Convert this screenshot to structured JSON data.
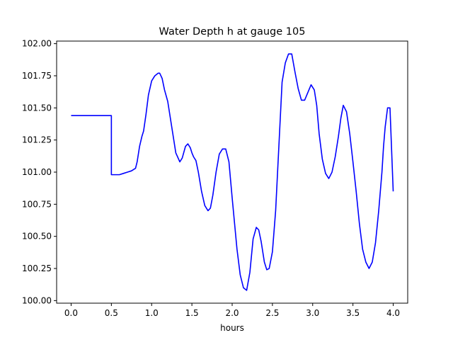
{
  "chart_data": {
    "type": "line",
    "title": "Water Depth h at gauge 105",
    "xlabel": "hours",
    "ylabel": "",
    "xlim": [
      -0.18,
      4.18
    ],
    "ylim": [
      99.98,
      102.02
    ],
    "xticks": [
      0.0,
      0.5,
      1.0,
      1.5,
      2.0,
      2.5,
      3.0,
      3.5,
      4.0
    ],
    "xtick_labels": [
      "0.0",
      "0.5",
      "1.0",
      "1.5",
      "2.0",
      "2.5",
      "3.0",
      "3.5",
      "4.0"
    ],
    "yticks": [
      100.0,
      100.25,
      100.5,
      100.75,
      101.0,
      101.25,
      101.5,
      101.75,
      102.0
    ],
    "ytick_labels": [
      "100.00",
      "100.25",
      "100.50",
      "100.75",
      "101.00",
      "101.25",
      "101.50",
      "101.75",
      "102.00"
    ],
    "grid": false,
    "series": [
      {
        "color": "#0000ff",
        "x": [
          0.0,
          0.1,
          0.2,
          0.3,
          0.4,
          0.49,
          0.5,
          0.5,
          0.55,
          0.6,
          0.65,
          0.7,
          0.75,
          0.8,
          0.82,
          0.85,
          0.88,
          0.9,
          0.93,
          0.96,
          1.0,
          1.04,
          1.08,
          1.1,
          1.13,
          1.16,
          1.2,
          1.25,
          1.3,
          1.35,
          1.38,
          1.42,
          1.45,
          1.48,
          1.5,
          1.52,
          1.55,
          1.58,
          1.62,
          1.66,
          1.7,
          1.73,
          1.76,
          1.8,
          1.84,
          1.88,
          1.92,
          1.96,
          2.0,
          2.03,
          2.06,
          2.1,
          2.14,
          2.18,
          2.22,
          2.26,
          2.3,
          2.33,
          2.36,
          2.4,
          2.43,
          2.46,
          2.5,
          2.54,
          2.58,
          2.62,
          2.66,
          2.7,
          2.74,
          2.78,
          2.82,
          2.86,
          2.9,
          2.94,
          2.98,
          3.02,
          3.05,
          3.08,
          3.12,
          3.16,
          3.2,
          3.24,
          3.28,
          3.32,
          3.35,
          3.38,
          3.42,
          3.46,
          3.5,
          3.54,
          3.58,
          3.62,
          3.66,
          3.7,
          3.74,
          3.78,
          3.82,
          3.86,
          3.88,
          3.9,
          3.93,
          3.96,
          4.0
        ],
        "y": [
          101.44,
          101.44,
          101.44,
          101.44,
          101.44,
          101.44,
          101.44,
          100.98,
          100.98,
          100.98,
          100.99,
          101.0,
          101.01,
          101.03,
          101.08,
          101.2,
          101.28,
          101.32,
          101.45,
          101.6,
          101.71,
          101.75,
          101.77,
          101.77,
          101.73,
          101.64,
          101.55,
          101.35,
          101.15,
          101.08,
          101.11,
          101.2,
          101.22,
          101.19,
          101.15,
          101.12,
          101.09,
          101.0,
          100.85,
          100.74,
          100.7,
          100.72,
          100.82,
          101.0,
          101.14,
          101.18,
          101.18,
          101.08,
          100.8,
          100.6,
          100.4,
          100.2,
          100.1,
          100.08,
          100.22,
          100.48,
          100.57,
          100.55,
          100.46,
          100.3,
          100.24,
          100.25,
          100.38,
          100.7,
          101.2,
          101.7,
          101.85,
          101.92,
          101.92,
          101.78,
          101.65,
          101.56,
          101.56,
          101.62,
          101.68,
          101.64,
          101.52,
          101.3,
          101.1,
          100.99,
          100.95,
          101.0,
          101.12,
          101.28,
          101.42,
          101.52,
          101.47,
          101.3,
          101.08,
          100.85,
          100.6,
          100.4,
          100.3,
          100.25,
          100.3,
          100.45,
          100.7,
          101.0,
          101.2,
          101.35,
          101.5,
          101.5,
          100.85
        ]
      }
    ]
  }
}
